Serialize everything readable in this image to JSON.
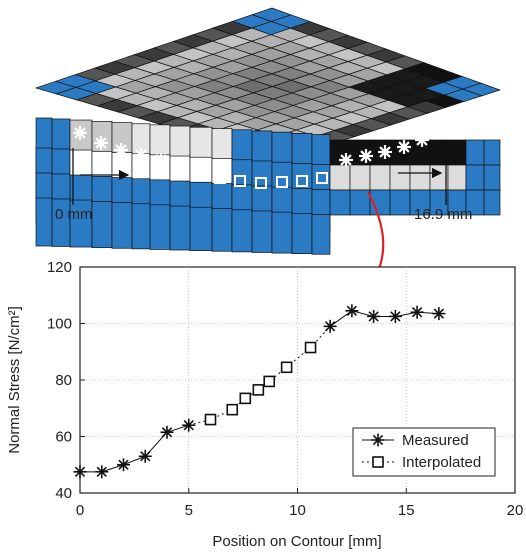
{
  "illustration": {
    "start_label": "0 mm",
    "end_label": "16.9 mm",
    "colors": {
      "blue_panel": "#2a7bc4",
      "grid_line": "#111111",
      "pointer_arrow": "#e02020"
    }
  },
  "chart_data": {
    "type": "scatter",
    "xlabel": "Position on Contour [mm]",
    "ylabel": "Normal Stress [N/cm²]",
    "xlim": [
      0,
      20
    ],
    "ylim": [
      40,
      120
    ],
    "xticks": [
      0,
      5,
      10,
      15,
      20
    ],
    "yticks": [
      40,
      60,
      80,
      100,
      120
    ],
    "grid": true,
    "legend_position": "bottom-right",
    "series": [
      {
        "name": "Measured",
        "marker": "asterisk",
        "line": "solid",
        "x": [
          0,
          1.0,
          2.0,
          3.0,
          4.0,
          5.0,
          11.5,
          12.5,
          13.5,
          14.5,
          15.5,
          16.5
        ],
        "y": [
          47.5,
          47.5,
          50.0,
          53.0,
          61.5,
          64.0,
          99.0,
          104.5,
          102.5,
          102.5,
          104.0,
          103.5
        ]
      },
      {
        "name": "Interpolated",
        "marker": "square",
        "line": "dotted",
        "x": [
          6.0,
          7.0,
          7.6,
          8.2,
          8.7,
          9.5,
          10.6
        ],
        "y": [
          66.0,
          69.5,
          73.5,
          76.5,
          79.5,
          84.5,
          91.5
        ]
      }
    ]
  }
}
